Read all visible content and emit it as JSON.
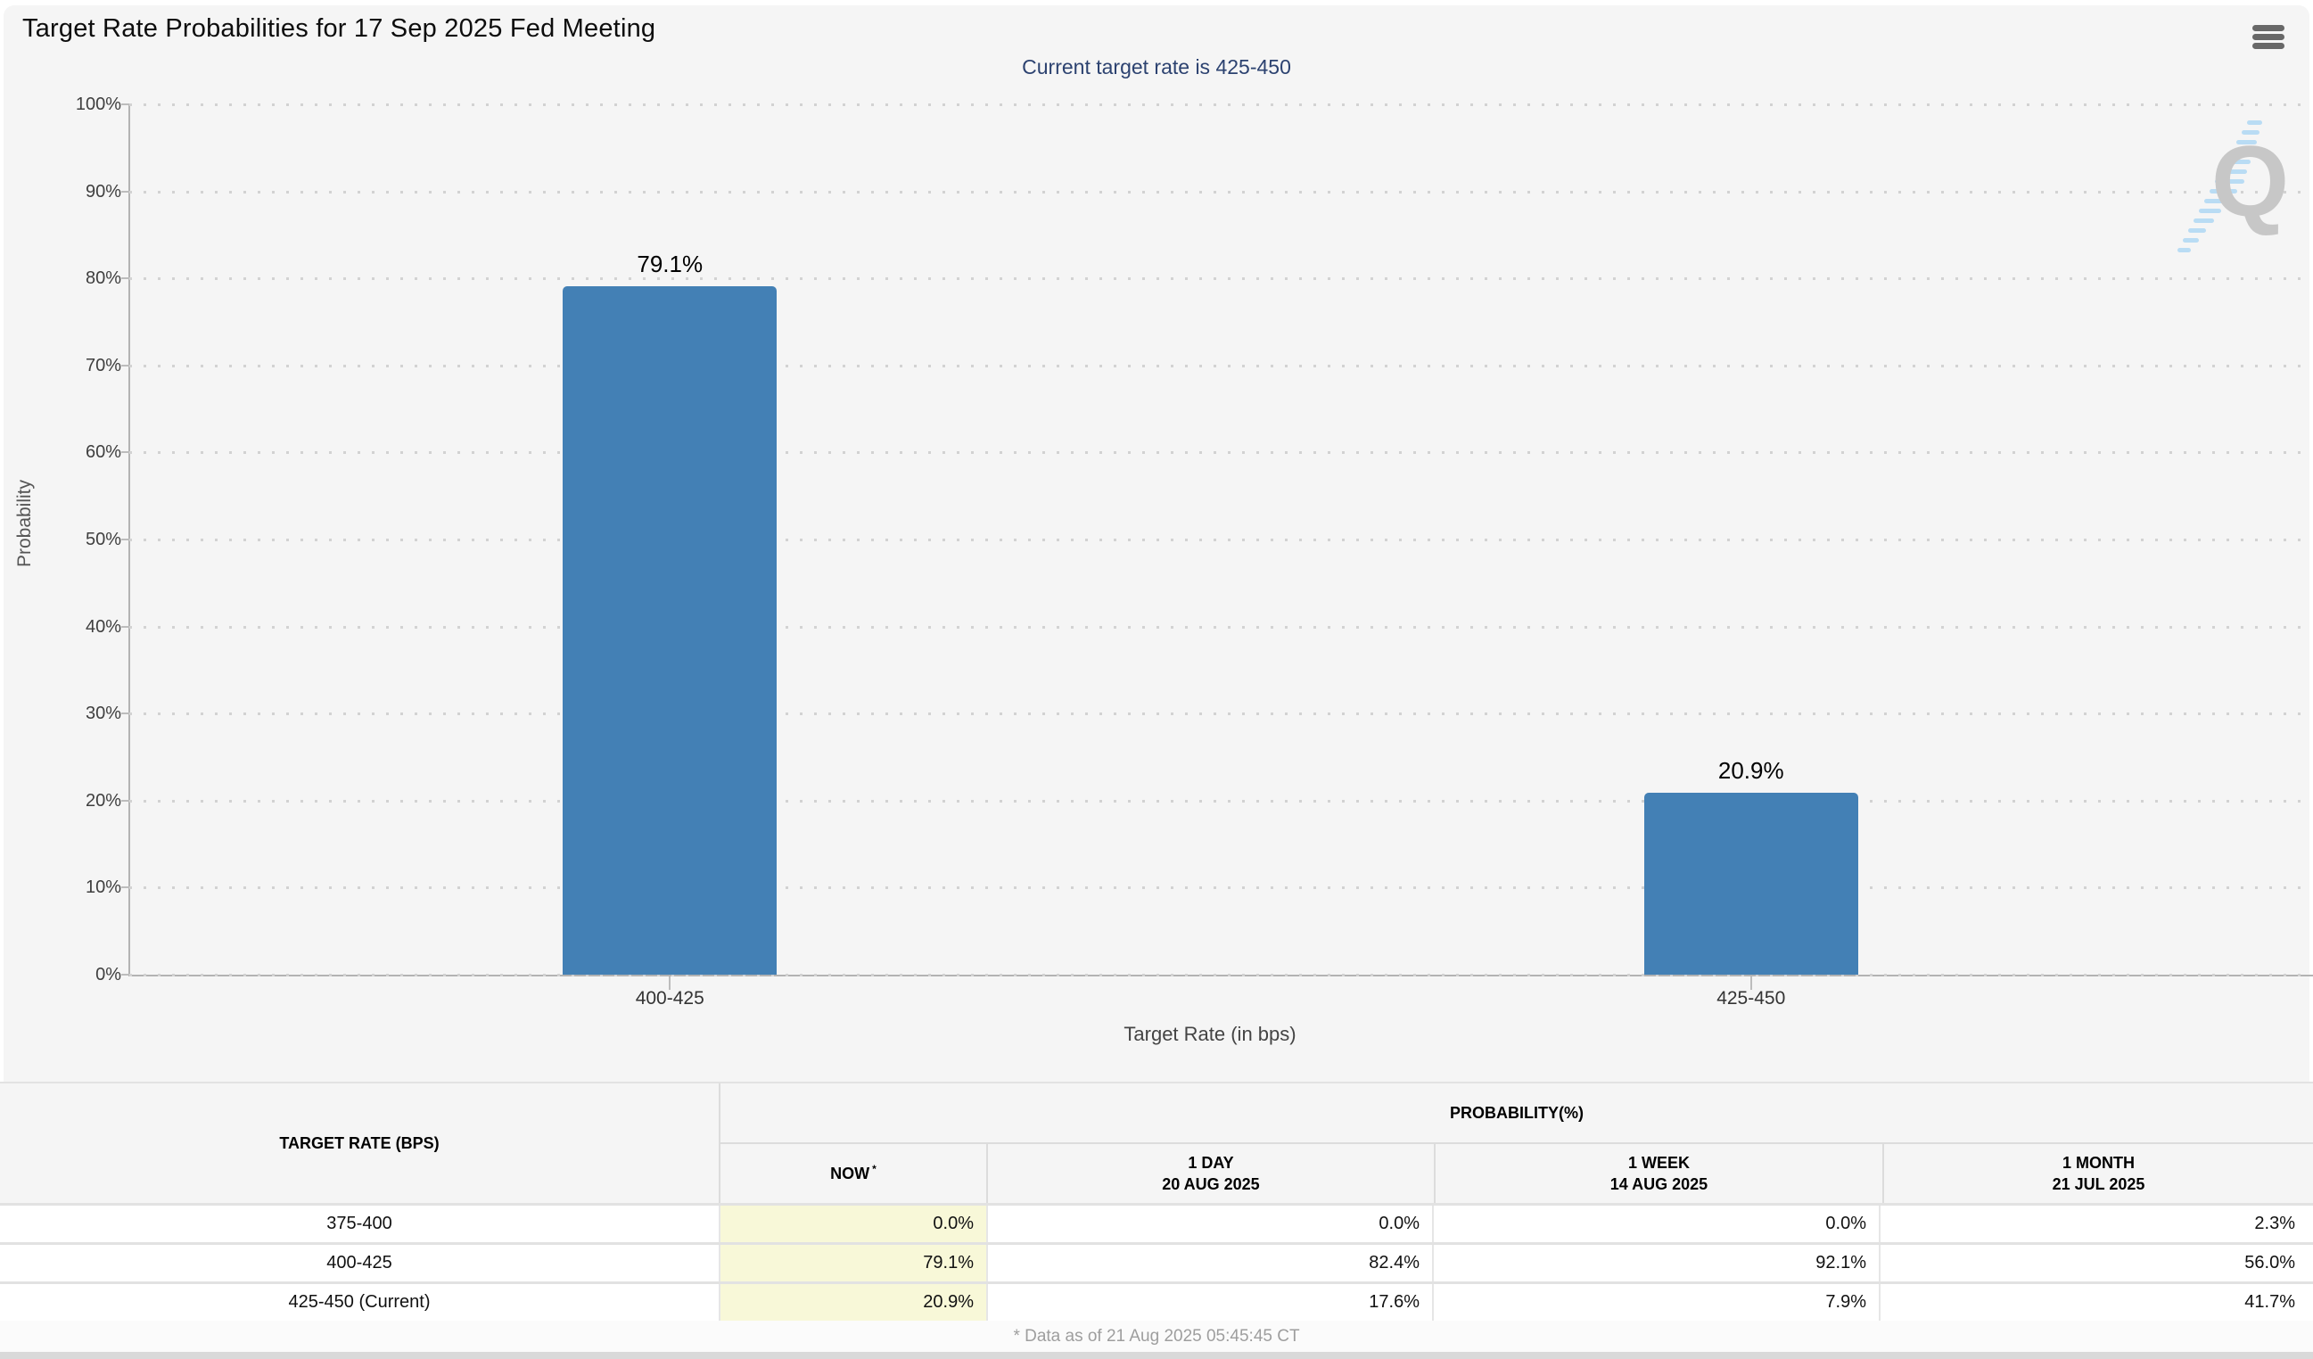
{
  "header": {
    "title": "Target Rate Probabilities for 17 Sep 2025 Fed Meeting",
    "menu_icon": "hamburger-icon"
  },
  "chart_data": {
    "type": "bar",
    "subtitle": "Current target rate is 425-450",
    "categories": [
      "400-425",
      "425-450"
    ],
    "values": [
      79.1,
      20.9
    ],
    "value_labels": [
      "79.1%",
      "20.9%"
    ],
    "xlabel": "Target Rate (in bps)",
    "ylabel": "Probability",
    "ylim": [
      0,
      100
    ],
    "ytick_step": 10,
    "ytick_labels": [
      "0%",
      "10%",
      "20%",
      "30%",
      "40%",
      "50%",
      "60%",
      "70%",
      "80%",
      "90%",
      "100%"
    ],
    "grid": "dotted-horizontal",
    "legend": "none",
    "bar_color": "#4380b5"
  },
  "watermark": {
    "letter": "Q"
  },
  "table": {
    "col1_header": "TARGET RATE (BPS)",
    "group_header": "PROBABILITY(%)",
    "columns": [
      {
        "label": "NOW",
        "sup": "*"
      },
      {
        "label": "1 DAY",
        "date": "20 AUG 2025"
      },
      {
        "label": "1 WEEK",
        "date": "14 AUG 2025"
      },
      {
        "label": "1 MONTH",
        "date": "21 JUL 2025"
      }
    ],
    "rows": [
      {
        "target_rate": "375-400",
        "values": [
          "0.0%",
          "0.0%",
          "0.0%",
          "2.3%"
        ]
      },
      {
        "target_rate": "400-425",
        "values": [
          "79.1%",
          "82.4%",
          "92.1%",
          "56.0%"
        ]
      },
      {
        "target_rate": "425-450 (Current)",
        "values": [
          "20.9%",
          "17.6%",
          "7.9%",
          "41.7%"
        ]
      }
    ]
  },
  "footer": {
    "note": "* Data as of 21 Aug 2025 05:45:45 CT"
  },
  "colors": {
    "background": "#f5f5f5",
    "bar": "#4380b5",
    "now_column_highlight": "#f8f8d8",
    "subtitle_text": "#2c4270",
    "axis_line": "#b3b3b3"
  }
}
